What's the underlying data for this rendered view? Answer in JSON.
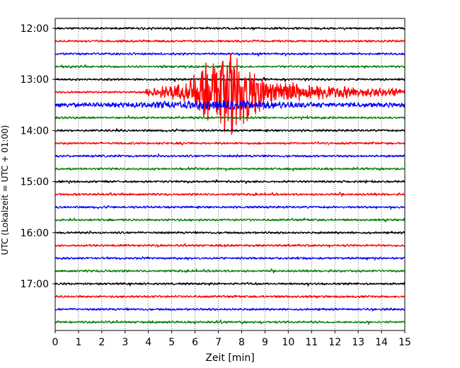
{
  "chart_data": {
    "type": "line",
    "title": "",
    "xlabel": "Zeit  [min]",
    "ylabel": "UTC (Lokalzeit = UTC + 01:00)",
    "xlim": [
      0,
      15
    ],
    "x_ticks": [
      "0",
      "1",
      "2",
      "3",
      "4",
      "5",
      "6",
      "7",
      "8",
      "9",
      "10",
      "11",
      "12",
      "13",
      "14",
      "15"
    ],
    "y_ticks": [
      "12:00",
      "13:00",
      "14:00",
      "15:00",
      "16:00",
      "17:00"
    ],
    "grid": true,
    "trace_interval_minutes": 15,
    "first_trace": "12:00",
    "trace_colors": [
      "#000000",
      "#ff0000",
      "#0000ff",
      "#008000"
    ],
    "series": [
      {
        "start": "12:00",
        "color": "#000000",
        "activity": "low"
      },
      {
        "start": "12:15",
        "color": "#ff0000",
        "activity": "low"
      },
      {
        "start": "12:30",
        "color": "#0000ff",
        "activity": "low"
      },
      {
        "start": "12:45",
        "color": "#008000",
        "activity": "low"
      },
      {
        "start": "13:00",
        "color": "#000000",
        "activity": "low"
      },
      {
        "start": "13:15",
        "color": "#ff0000",
        "activity": "earthquake",
        "event_onset_min": 3.9,
        "peak_min": 7.4,
        "peak_amplitude_traces": 6.3
      },
      {
        "start": "13:30",
        "color": "#0000ff",
        "activity": "moderate"
      },
      {
        "start": "13:45",
        "color": "#008000",
        "activity": "low"
      },
      {
        "start": "14:00",
        "color": "#000000",
        "activity": "low"
      },
      {
        "start": "14:15",
        "color": "#ff0000",
        "activity": "low"
      },
      {
        "start": "14:30",
        "color": "#0000ff",
        "activity": "low"
      },
      {
        "start": "14:45",
        "color": "#008000",
        "activity": "low"
      },
      {
        "start": "15:00",
        "color": "#000000",
        "activity": "low"
      },
      {
        "start": "15:15",
        "color": "#ff0000",
        "activity": "low"
      },
      {
        "start": "15:30",
        "color": "#0000ff",
        "activity": "low"
      },
      {
        "start": "15:45",
        "color": "#008000",
        "activity": "low"
      },
      {
        "start": "16:00",
        "color": "#000000",
        "activity": "low"
      },
      {
        "start": "16:15",
        "color": "#ff0000",
        "activity": "low"
      },
      {
        "start": "16:30",
        "color": "#0000ff",
        "activity": "low"
      },
      {
        "start": "16:45",
        "color": "#008000",
        "activity": "low"
      },
      {
        "start": "17:00",
        "color": "#000000",
        "activity": "low"
      },
      {
        "start": "17:15",
        "color": "#ff0000",
        "activity": "low"
      },
      {
        "start": "17:30",
        "color": "#0000ff",
        "activity": "low"
      },
      {
        "start": "17:45",
        "color": "#008000",
        "activity": "low"
      }
    ]
  }
}
